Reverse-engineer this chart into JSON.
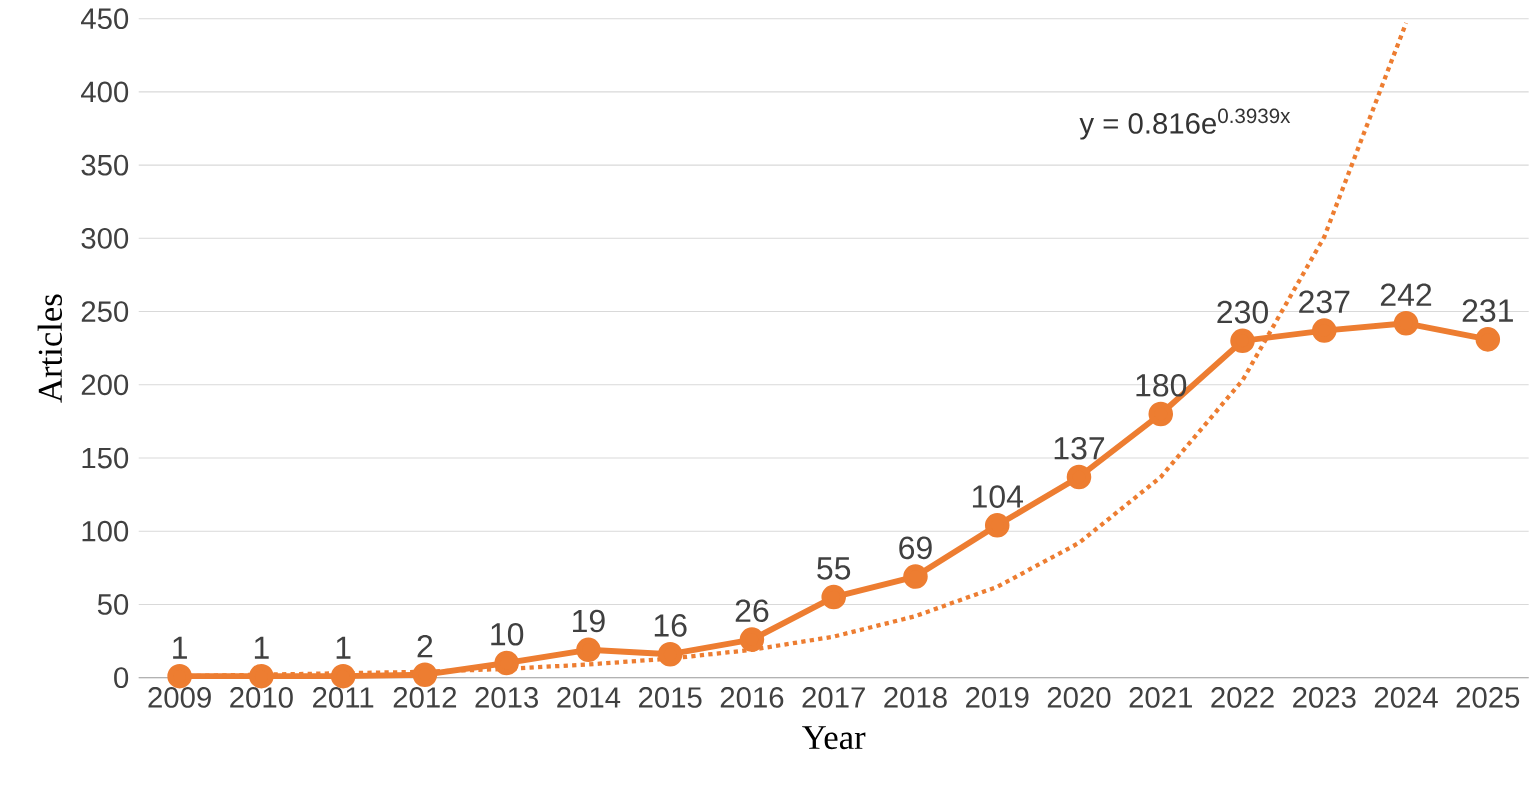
{
  "chart_data": {
    "type": "line",
    "xlabel": "Year",
    "ylabel": "Articles",
    "categories": [
      "2009",
      "2010",
      "2011",
      "2012",
      "2013",
      "2014",
      "2015",
      "2016",
      "2017",
      "2018",
      "2019",
      "2020",
      "2021",
      "2022",
      "2023",
      "2024",
      "2025"
    ],
    "series": [
      {
        "color": "#ed7d31",
        "marker": "circle",
        "line_style": "solid",
        "values": [
          1,
          1,
          1,
          2,
          10,
          19,
          16,
          26,
          55,
          69,
          104,
          137,
          180,
          230,
          237,
          242,
          231
        ],
        "value_labels": [
          "1",
          "1",
          "1",
          "2",
          "10",
          "19",
          "16",
          "26",
          "55",
          "69",
          "104",
          "137",
          "180",
          "230",
          "237",
          "242",
          "231"
        ]
      },
      {
        "color": "#ed7d31",
        "marker": "none",
        "line_style": "dotted",
        "values": [
          1,
          2,
          3,
          4,
          6,
          9,
          13,
          19,
          28,
          42,
          62,
          92,
          137,
          203,
          301,
          447,
          null
        ]
      }
    ],
    "grid": "y",
    "ylim": [
      0,
      450
    ],
    "yticks": [
      0,
      50,
      100,
      150,
      200,
      250,
      300,
      350,
      400,
      450
    ],
    "annotations": [
      "y = 0.816e$^{0.3939x}$"
    ]
  }
}
